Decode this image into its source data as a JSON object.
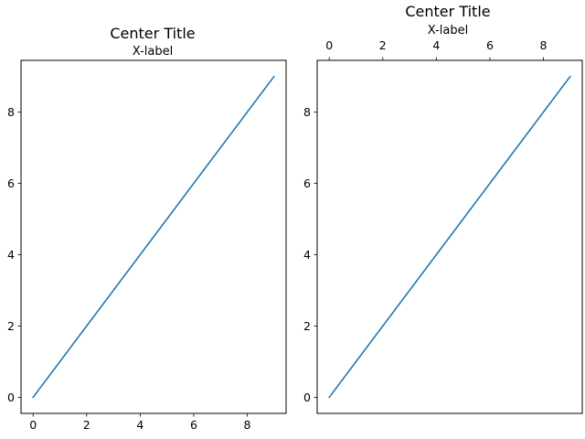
{
  "chart_data": [
    {
      "type": "line",
      "title": "Center Title",
      "xlabel": "X-label",
      "ylabel": "",
      "x_axis_position": "bottom",
      "xlim": [
        -0.45,
        9.45
      ],
      "ylim": [
        -0.45,
        9.45
      ],
      "xticks": [
        0,
        2,
        4,
        6,
        8
      ],
      "yticks": [
        0,
        2,
        4,
        6,
        8
      ],
      "grid": false,
      "series": [
        {
          "x": [
            0,
            1,
            2,
            3,
            4,
            5,
            6,
            7,
            8,
            9
          ],
          "y": [
            0,
            1,
            2,
            3,
            4,
            5,
            6,
            7,
            8,
            9
          ],
          "color": "#1f77b4"
        }
      ]
    },
    {
      "type": "line",
      "title": "Center Title",
      "xlabel": "X-label",
      "ylabel": "",
      "x_axis_position": "top",
      "xlim": [
        -0.45,
        9.45
      ],
      "ylim": [
        -0.45,
        9.45
      ],
      "xticks": [
        0,
        2,
        4,
        6,
        8
      ],
      "yticks": [
        0,
        2,
        4,
        6,
        8
      ],
      "grid": false,
      "series": [
        {
          "x": [
            0,
            1,
            2,
            3,
            4,
            5,
            6,
            7,
            8,
            9
          ],
          "y": [
            0,
            1,
            2,
            3,
            4,
            5,
            6,
            7,
            8,
            9
          ],
          "color": "#1f77b4"
        }
      ]
    }
  ]
}
